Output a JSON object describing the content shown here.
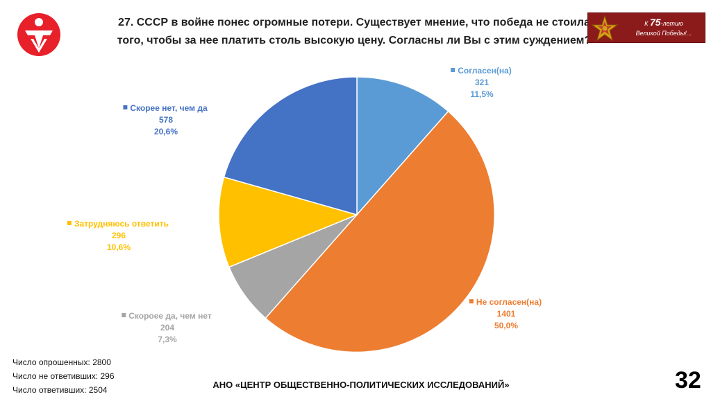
{
  "header": {
    "title": "27. СССР в войне понес огромные потери. Существует мнение, что победа не стоила того, чтобы за нее платить столь высокую цену. Согласны ли Вы с этим суждением?",
    "badge_prefix": "К",
    "badge_number": "75",
    "badge_suffix": "-летию",
    "badge_line2": "Великой Победы!..."
  },
  "chart_data": {
    "type": "pie",
    "title": "",
    "start_angle_deg": 0,
    "slices": [
      {
        "label": "Согласен(на)",
        "count": "321",
        "percent_label": "11,5%",
        "value": 11.5,
        "color": "#5b9bd5"
      },
      {
        "label": "Не согласен(на)",
        "count": "1401",
        "percent_label": "50,0%",
        "value": 50.0,
        "color": "#ed7d31"
      },
      {
        "label": "Скороее да, чем нет",
        "count": "204",
        "percent_label": "7,3%",
        "value": 7.3,
        "color": "#a5a5a5"
      },
      {
        "label": "Затрудняюсь ответить",
        "count": "296",
        "percent_label": "10,6%",
        "value": 10.6,
        "color": "#ffc000"
      },
      {
        "label": "Скорее нет,  чем да",
        "count": "578",
        "percent_label": "20,6%",
        "value": 20.6,
        "color": "#4472c4"
      }
    ]
  },
  "footer": {
    "stats": [
      "Число опрошенных: 2800",
      "Число не ответивших: 296",
      "Число ответивших: 2504"
    ],
    "org": "АНО «ЦЕНТР ОБЩЕСТВЕННО-ПОЛИТИЧЕСКИХ ИССЛЕДОВАНИЙ»",
    "page_number": "32"
  },
  "colors": {
    "logo": "#e8202a",
    "badge": "#8b1a1a"
  }
}
